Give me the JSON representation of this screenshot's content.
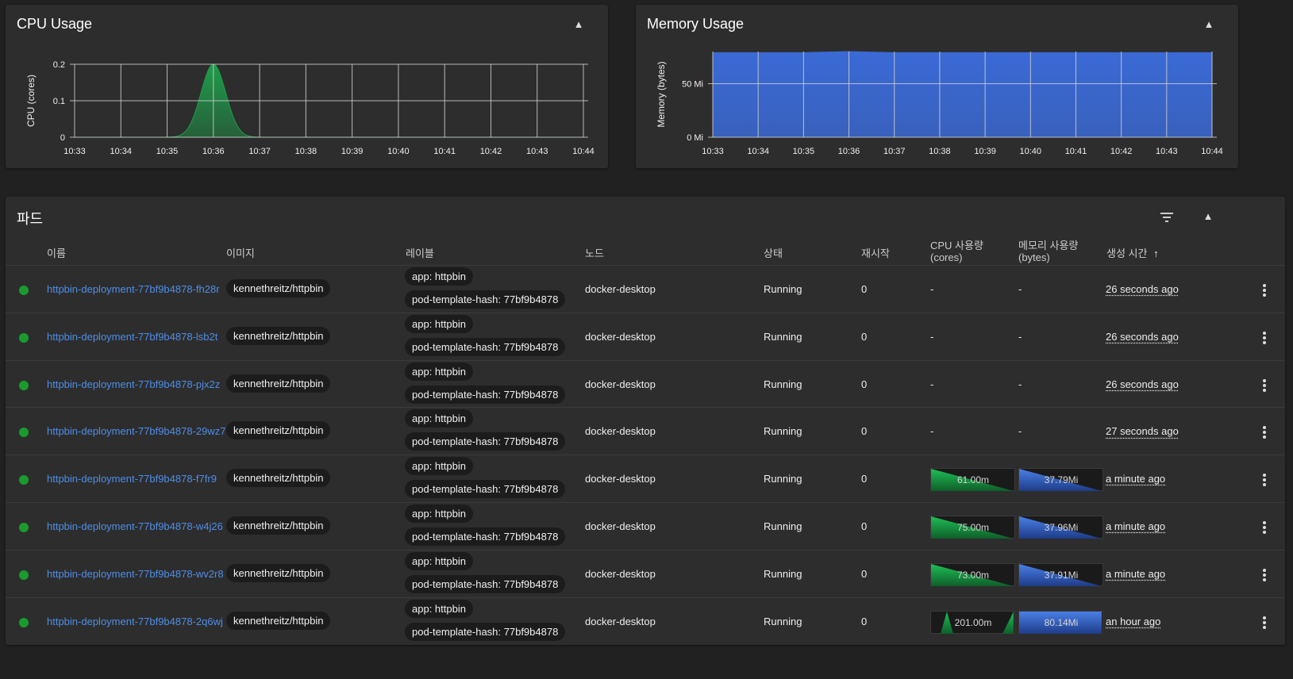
{
  "cpu_card": {
    "title": "CPU Usage"
  },
  "mem_card": {
    "title": "Memory Usage"
  },
  "chart_data": [
    {
      "type": "area",
      "title": "CPU Usage",
      "ylabel": "CPU (cores)",
      "x": [
        "10:33",
        "10:34",
        "10:35",
        "10:36",
        "10:37",
        "10:38",
        "10:39",
        "10:40",
        "10:41",
        "10:42",
        "10:43",
        "10:44"
      ],
      "yticks": [
        "0",
        "0.1",
        "0.2"
      ],
      "ylim": [
        0,
        0.2
      ],
      "grid": true,
      "color": "#1f9d4a",
      "series": [
        {
          "values": [
            0,
            0,
            0,
            0.2,
            0,
            0,
            0,
            0,
            0,
            0,
            0,
            0
          ]
        }
      ]
    },
    {
      "type": "area",
      "title": "Memory Usage",
      "ylabel": "Memory (bytes)",
      "x": [
        "10:33",
        "10:34",
        "10:35",
        "10:36",
        "10:37",
        "10:38",
        "10:39",
        "10:40",
        "10:41",
        "10:42",
        "10:43",
        "10:44"
      ],
      "yticks": [
        "0 Mi",
        "50 Mi"
      ],
      "ylim": [
        0,
        80
      ],
      "grid": true,
      "color": "#3b6ad6",
      "series": [
        {
          "values": [
            79,
            79,
            79,
            80,
            79,
            79,
            79,
            79,
            79,
            79,
            79,
            79
          ]
        }
      ]
    }
  ],
  "pods": {
    "title": "파드",
    "headers": {
      "name": "이름",
      "image": "이미지",
      "labels": "레이블",
      "node": "노드",
      "status": "상태",
      "restarts": "재시작",
      "cpu": "CPU 사용량",
      "cpu_unit": "(cores)",
      "mem": "메모리 사용량",
      "mem_unit": "(bytes)",
      "created": "생성 시간",
      "sort_icon": "↑"
    },
    "status_color": "#1a9b2e",
    "rows": [
      {
        "name": "httpbin-deployment-77bf9b4878-fh28r",
        "image": "kennethreitz/httpbin",
        "label1": "app: httpbin",
        "label2": "pod-template-hash: 77bf9b4878",
        "node": "docker-desktop",
        "status": "Running",
        "restarts": "0",
        "cpu": "-",
        "mem": "-",
        "created": "26 seconds ago",
        "cpu_spark": null,
        "mem_spark": null
      },
      {
        "name": "httpbin-deployment-77bf9b4878-lsb2t",
        "image": "kennethreitz/httpbin",
        "label1": "app: httpbin",
        "label2": "pod-template-hash: 77bf9b4878",
        "node": "docker-desktop",
        "status": "Running",
        "restarts": "0",
        "cpu": "-",
        "mem": "-",
        "created": "26 seconds ago",
        "cpu_spark": null,
        "mem_spark": null
      },
      {
        "name": "httpbin-deployment-77bf9b4878-pjx2z",
        "image": "kennethreitz/httpbin",
        "label1": "app: httpbin",
        "label2": "pod-template-hash: 77bf9b4878",
        "node": "docker-desktop",
        "status": "Running",
        "restarts": "0",
        "cpu": "-",
        "mem": "-",
        "created": "26 seconds ago",
        "cpu_spark": null,
        "mem_spark": null
      },
      {
        "name": "httpbin-deployment-77bf9b4878-29wz7",
        "image": "kennethreitz/httpbin",
        "label1": "app: httpbin",
        "label2": "pod-template-hash: 77bf9b4878",
        "node": "docker-desktop",
        "status": "Running",
        "restarts": "0",
        "cpu": "-",
        "mem": "-",
        "created": "27 seconds ago",
        "cpu_spark": null,
        "mem_spark": null
      },
      {
        "name": "httpbin-deployment-77bf9b4878-f7fr9",
        "image": "kennethreitz/httpbin",
        "label1": "app: httpbin",
        "label2": "pod-template-hash: 77bf9b4878",
        "node": "docker-desktop",
        "status": "Running",
        "restarts": "0",
        "cpu": "61.00m",
        "mem": "37.79Mi",
        "created": "a minute ago",
        "cpu_spark": "down",
        "mem_spark": "down"
      },
      {
        "name": "httpbin-deployment-77bf9b4878-w4j26",
        "image": "kennethreitz/httpbin",
        "label1": "app: httpbin",
        "label2": "pod-template-hash: 77bf9b4878",
        "node": "docker-desktop",
        "status": "Running",
        "restarts": "0",
        "cpu": "75.00m",
        "mem": "37.96Mi",
        "created": "a minute ago",
        "cpu_spark": "down",
        "mem_spark": "down"
      },
      {
        "name": "httpbin-deployment-77bf9b4878-wv2r8",
        "image": "kennethreitz/httpbin",
        "label1": "app: httpbin",
        "label2": "pod-template-hash: 77bf9b4878",
        "node": "docker-desktop",
        "status": "Running",
        "restarts": "0",
        "cpu": "73.00m",
        "mem": "37.91Mi",
        "created": "a minute ago",
        "cpu_spark": "down",
        "mem_spark": "down"
      },
      {
        "name": "httpbin-deployment-77bf9b4878-2q6wj",
        "image": "kennethreitz/httpbin",
        "label1": "app: httpbin",
        "label2": "pod-template-hash: 77bf9b4878",
        "node": "docker-desktop",
        "status": "Running",
        "restarts": "0",
        "cpu": "201.00m",
        "mem": "80.14Mi",
        "created": "an hour ago",
        "cpu_spark": "spikes",
        "mem_spark": "flat"
      }
    ]
  }
}
